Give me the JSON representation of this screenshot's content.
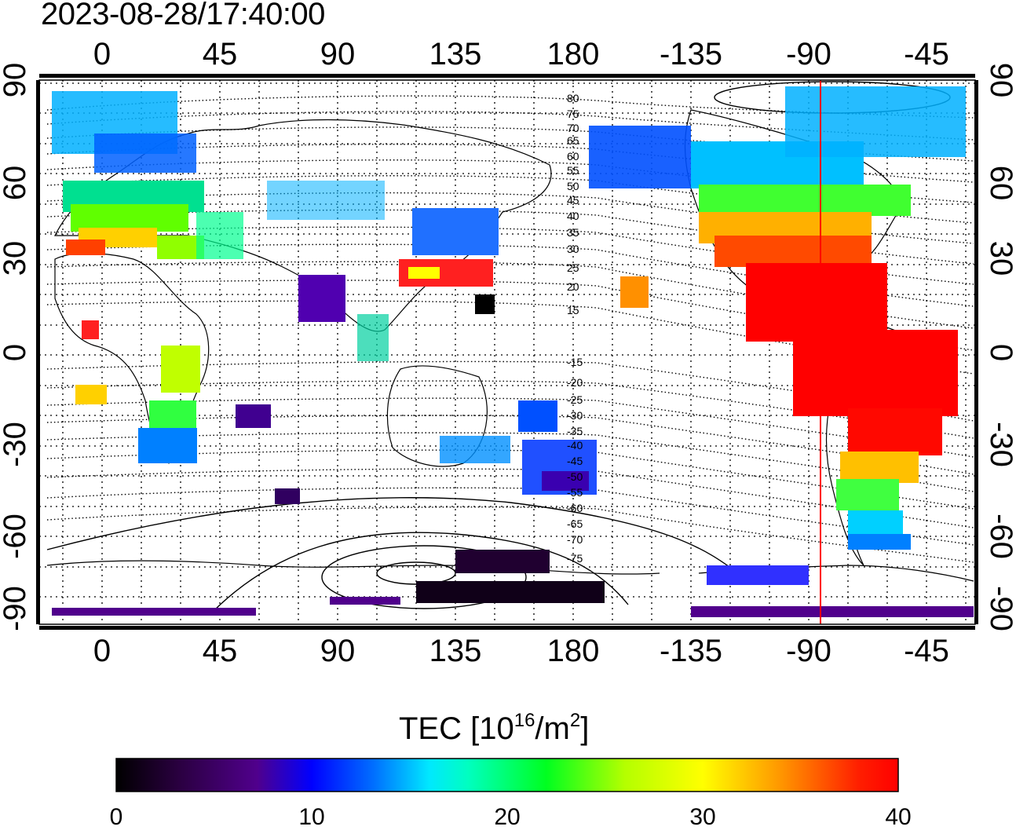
{
  "timestamp": "2023-08-28/17:40:00",
  "map": {
    "top_lon_labels": [
      "0",
      "45",
      "90",
      "135",
      "180",
      "-135",
      "-90",
      "-45"
    ],
    "bottom_lon_labels": [
      "0",
      "45",
      "90",
      "135",
      "180",
      "-135",
      "-90",
      "-45"
    ],
    "left_lat_labels": [
      "90",
      "60",
      "30",
      "0",
      "-30",
      "-60",
      "-90"
    ],
    "right_lat_labels": [
      "90",
      "60",
      "30",
      "0",
      "-30",
      "-60",
      "-90"
    ],
    "contour_labels_north": [
      "80",
      "75",
      "70",
      "65",
      "60",
      "55",
      "50",
      "45",
      "40",
      "35",
      "30",
      "25",
      "20",
      "15"
    ],
    "contour_labels_south": [
      "-15",
      "-20",
      "-25",
      "-30",
      "-35",
      "-40",
      "-45",
      "-50",
      "-55",
      "-60",
      "-65",
      "-70",
      "-75"
    ],
    "highlight_line_color": "#ff0000"
  },
  "colorbar": {
    "title_text": "TEC  [10",
    "title_exp1": "16",
    "title_mid": "/m",
    "title_exp2": "2",
    "title_end": "]",
    "ticks": [
      "0",
      "10",
      "20",
      "30",
      "40"
    ],
    "range": [
      0,
      40
    ],
    "colors": [
      "#000000",
      "#2a0040",
      "#50008c",
      "#3c00d2",
      "#0000ff",
      "#0070ff",
      "#00d2ff",
      "#00ffd2",
      "#00f060",
      "#30ff00",
      "#b4ff00",
      "#ffff00",
      "#ffc800",
      "#ff8c00",
      "#ff4000",
      "#ff0000"
    ]
  }
}
